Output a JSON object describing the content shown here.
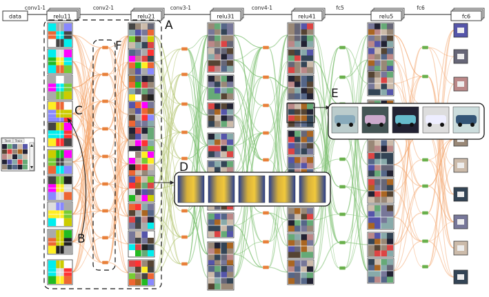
{
  "pipeline": {
    "layers": [
      "data",
      "relu11",
      "relu21",
      "relu31",
      "relu41",
      "relu5",
      "fc6"
    ],
    "connections": [
      "conv1-1",
      "conv2-1",
      "conv3-1",
      "conv4-1",
      "fc5",
      "fc6"
    ]
  },
  "input_panel": {
    "tabs": [
      "Test",
      "Train"
    ]
  },
  "callouts": [
    "A",
    "B",
    "C",
    "D",
    "E",
    "F"
  ],
  "colors": {
    "low_layer_edge": "#f4a46a",
    "high_layer_edge": "#7cc070",
    "mid_edge": "#b8c87a",
    "neuron_orange": "#e8803a",
    "neuron_green": "#6ab04c",
    "frame": "#222222"
  },
  "icons": [
    "scroll-up-icon",
    "scroll-down-icon"
  ]
}
